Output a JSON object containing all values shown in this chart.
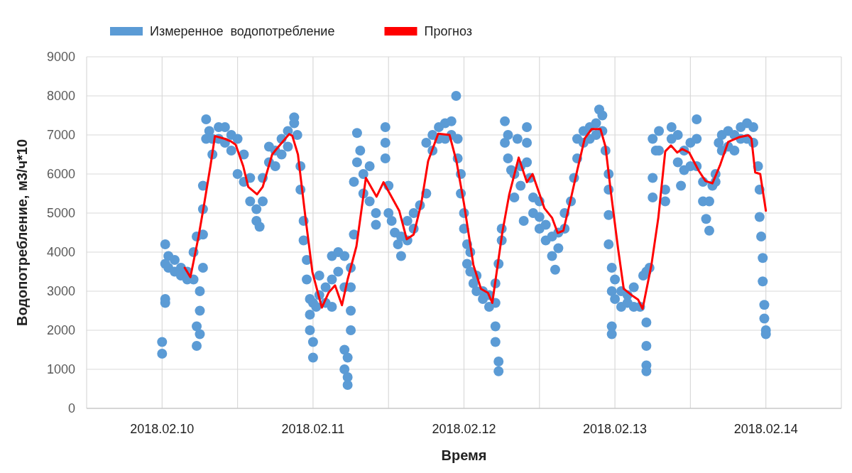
{
  "chart_data": {
    "type": "scatter",
    "xlabel": "Время",
    "ylabel": "Водопотребление, м3/ч*10",
    "xlim": [
      "2018-02-09T12:00",
      "2018-02-14T12:00"
    ],
    "xticks": [
      {
        "value": "2018-02-10T00:00",
        "label": "2018.02.10"
      },
      {
        "value": "2018-02-10T12:00",
        "label": null
      },
      {
        "value": "2018-02-11T00:00",
        "label": "2018.02.11"
      },
      {
        "value": "2018-02-11T12:00",
        "label": null
      },
      {
        "value": "2018-02-12T00:00",
        "label": "2018.02.12"
      },
      {
        "value": "2018-02-12T12:00",
        "label": null
      },
      {
        "value": "2018-02-13T00:00",
        "label": "2018.02.13"
      },
      {
        "value": "2018-02-13T12:00",
        "label": null
      },
      {
        "value": "2018-02-14T00:00",
        "label": "2018.02.14"
      }
    ],
    "ylim": [
      0,
      9000
    ],
    "yticks": [
      0,
      1000,
      2000,
      3000,
      4000,
      5000,
      6000,
      7000,
      8000,
      9000
    ],
    "grid": true,
    "legend": "top",
    "series": [
      {
        "name": "Измеренное  водопотребление",
        "marker": "circle",
        "color": "#5b9bd5",
        "x": [
          "2018-02-10T00:00",
          "2018-02-10T00:00",
          "2018-02-10T00:30",
          "2018-02-10T00:30",
          "2018-02-10T00:30",
          "2018-02-10T00:30",
          "2018-02-10T01:00",
          "2018-02-10T01:00",
          "2018-02-10T02:00",
          "2018-02-10T02:00",
          "2018-02-10T03:00",
          "2018-02-10T03:00",
          "2018-02-10T04:00",
          "2018-02-10T04:00",
          "2018-02-10T05:00",
          "2018-02-10T05:00",
          "2018-02-10T05:30",
          "2018-02-10T05:30",
          "2018-02-10T05:30",
          "2018-02-10T06:00",
          "2018-02-10T06:00",
          "2018-02-10T06:00",
          "2018-02-10T06:30",
          "2018-02-10T06:30",
          "2018-02-10T06:30",
          "2018-02-10T06:30",
          "2018-02-10T07:00",
          "2018-02-10T07:00",
          "2018-02-10T07:30",
          "2018-02-10T08:00",
          "2018-02-10T08:00",
          "2018-02-10T09:00",
          "2018-02-10T09:00",
          "2018-02-10T10:00",
          "2018-02-10T10:00",
          "2018-02-10T11:00",
          "2018-02-10T11:00",
          "2018-02-10T12:00",
          "2018-02-10T12:00",
          "2018-02-10T13:00",
          "2018-02-10T13:00",
          "2018-02-10T14:00",
          "2018-02-10T14:00",
          "2018-02-10T15:00",
          "2018-02-10T15:00",
          "2018-02-10T15:30",
          "2018-02-10T16:00",
          "2018-02-10T16:00",
          "2018-02-10T17:00",
          "2018-02-10T17:00",
          "2018-02-10T18:00",
          "2018-02-10T18:00",
          "2018-02-10T19:00",
          "2018-02-10T19:00",
          "2018-02-10T20:00",
          "2018-02-10T20:00",
          "2018-02-10T21:00",
          "2018-02-10T21:00",
          "2018-02-10T21:30",
          "2018-02-10T22:00",
          "2018-02-10T22:00",
          "2018-02-10T22:30",
          "2018-02-10T22:30",
          "2018-02-10T23:00",
          "2018-02-10T23:00",
          "2018-02-10T23:30",
          "2018-02-10T23:30",
          "2018-02-10T23:30",
          "2018-02-11T00:00",
          "2018-02-11T00:00",
          "2018-02-11T00:00",
          "2018-02-11T00:30",
          "2018-02-11T01:00",
          "2018-02-11T01:00",
          "2018-02-11T02:00",
          "2018-02-11T02:00",
          "2018-02-11T03:00",
          "2018-02-11T03:00",
          "2018-02-11T03:00",
          "2018-02-11T04:00",
          "2018-02-11T04:00",
          "2018-02-11T05:00",
          "2018-02-11T05:00",
          "2018-02-11T05:00",
          "2018-02-11T05:00",
          "2018-02-11T05:30",
          "2018-02-11T05:30",
          "2018-02-11T05:30",
          "2018-02-11T06:00",
          "2018-02-11T06:00",
          "2018-02-11T06:00",
          "2018-02-11T06:00",
          "2018-02-11T06:30",
          "2018-02-11T06:30",
          "2018-02-11T07:00",
          "2018-02-11T07:00",
          "2018-02-11T07:30",
          "2018-02-11T08:00",
          "2018-02-11T08:00",
          "2018-02-11T09:00",
          "2018-02-11T09:00",
          "2018-02-11T10:00",
          "2018-02-11T10:00",
          "2018-02-11T11:30",
          "2018-02-11T11:30",
          "2018-02-11T11:30",
          "2018-02-11T12:00",
          "2018-02-11T12:00",
          "2018-02-11T12:30",
          "2018-02-11T13:00",
          "2018-02-11T13:30",
          "2018-02-11T14:00",
          "2018-02-11T14:00",
          "2018-02-11T15:00",
          "2018-02-11T15:00",
          "2018-02-11T16:00",
          "2018-02-11T16:00",
          "2018-02-11T17:00",
          "2018-02-11T18:00",
          "2018-02-11T18:00",
          "2018-02-11T19:00",
          "2018-02-11T19:00",
          "2018-02-11T20:00",
          "2018-02-11T20:00",
          "2018-02-11T21:00",
          "2018-02-11T21:00",
          "2018-02-11T22:00",
          "2018-02-11T22:00",
          "2018-02-11T22:45",
          "2018-02-11T23:00",
          "2018-02-11T23:00",
          "2018-02-11T23:30",
          "2018-02-11T23:30",
          "2018-02-12T00:00",
          "2018-02-12T00:00",
          "2018-02-12T00:30",
          "2018-02-12T00:30",
          "2018-02-12T01:00",
          "2018-02-12T01:00",
          "2018-02-12T01:30",
          "2018-02-12T02:00",
          "2018-02-12T02:00",
          "2018-02-12T03:00",
          "2018-02-12T03:00",
          "2018-02-12T04:00",
          "2018-02-12T04:00",
          "2018-02-12T05:00",
          "2018-02-12T05:00",
          "2018-02-12T05:00",
          "2018-02-12T05:00",
          "2018-02-12T05:30",
          "2018-02-12T05:30",
          "2018-02-12T05:30",
          "2018-02-12T06:00",
          "2018-02-12T06:00",
          "2018-02-12T06:30",
          "2018-02-12T06:30",
          "2018-02-12T07:00",
          "2018-02-12T07:00",
          "2018-02-12T07:30",
          "2018-02-12T08:00",
          "2018-02-12T08:00",
          "2018-02-12T08:30",
          "2018-02-12T09:00",
          "2018-02-12T09:00",
          "2018-02-12T09:30",
          "2018-02-12T10:00",
          "2018-02-12T10:00",
          "2018-02-12T10:00",
          "2018-02-12T10:30",
          "2018-02-12T11:00",
          "2018-02-12T11:00",
          "2018-02-12T12:00",
          "2018-02-12T12:00",
          "2018-02-12T12:00",
          "2018-02-12T13:00",
          "2018-02-12T13:00",
          "2018-02-12T14:00",
          "2018-02-12T14:00",
          "2018-02-12T14:30",
          "2018-02-12T15:00",
          "2018-02-12T15:00",
          "2018-02-12T16:00",
          "2018-02-12T16:00",
          "2018-02-12T17:00",
          "2018-02-12T17:30",
          "2018-02-12T18:00",
          "2018-02-12T18:00",
          "2018-02-12T19:00",
          "2018-02-12T19:00",
          "2018-02-12T20:00",
          "2018-02-12T20:00",
          "2018-02-12T21:00",
          "2018-02-12T21:00",
          "2018-02-12T21:30",
          "2018-02-12T22:00",
          "2018-02-12T22:00",
          "2018-02-12T22:30",
          "2018-02-12T23:00",
          "2018-02-12T23:00",
          "2018-02-12T23:00",
          "2018-02-12T23:00",
          "2018-02-12T23:30",
          "2018-02-12T23:30",
          "2018-02-12T23:30",
          "2018-02-12T23:30",
          "2018-02-13T00:00",
          "2018-02-13T00:00",
          "2018-02-13T01:00",
          "2018-02-13T01:00",
          "2018-02-13T02:00",
          "2018-02-13T02:00",
          "2018-02-13T03:00",
          "2018-02-13T03:00",
          "2018-02-13T04:00",
          "2018-02-13T04:30",
          "2018-02-13T05:00",
          "2018-02-13T05:00",
          "2018-02-13T05:00",
          "2018-02-13T05:00",
          "2018-02-13T05:00",
          "2018-02-13T05:30",
          "2018-02-13T06:00",
          "2018-02-13T06:00",
          "2018-02-13T06:00",
          "2018-02-13T06:30",
          "2018-02-13T07:00",
          "2018-02-13T07:00",
          "2018-02-13T08:00",
          "2018-02-13T08:00",
          "2018-02-13T09:00",
          "2018-02-13T09:00",
          "2018-02-13T10:00",
          "2018-02-13T10:00",
          "2018-02-13T10:30",
          "2018-02-13T11:00",
          "2018-02-13T11:00",
          "2018-02-13T12:00",
          "2018-02-13T12:00",
          "2018-02-13T13:00",
          "2018-02-13T13:00",
          "2018-02-13T13:00",
          "2018-02-13T14:00",
          "2018-02-13T14:00",
          "2018-02-13T14:30",
          "2018-02-13T15:00",
          "2018-02-13T15:00",
          "2018-02-13T15:30",
          "2018-02-13T16:00",
          "2018-02-13T16:00",
          "2018-02-13T16:30",
          "2018-02-13T17:00",
          "2018-02-13T17:00",
          "2018-02-13T18:00",
          "2018-02-13T18:00",
          "2018-02-13T19:00",
          "2018-02-13T19:00",
          "2018-02-13T20:00",
          "2018-02-13T20:00",
          "2018-02-13T21:00",
          "2018-02-13T21:00",
          "2018-02-13T22:00",
          "2018-02-13T22:00",
          "2018-02-13T22:45",
          "2018-02-13T23:00",
          "2018-02-13T23:00",
          "2018-02-13T23:15",
          "2018-02-13T23:30",
          "2018-02-13T23:30",
          "2018-02-13T23:45",
          "2018-02-13T23:45",
          "2018-02-14T00:00",
          "2018-02-14T00:00"
        ],
        "values": [
          1700,
          1400,
          2800,
          2700,
          3700,
          4200,
          3900,
          3600,
          3800,
          3500,
          3600,
          3400,
          3500,
          3300,
          3300,
          4000,
          4400,
          2100,
          1600,
          2500,
          1900,
          3000,
          3600,
          4450,
          5100,
          5700,
          7400,
          6900,
          7100,
          6900,
          6500,
          7200,
          6900,
          7200,
          6800,
          7000,
          6600,
          6900,
          6000,
          6500,
          5800,
          5900,
          5300,
          5100,
          4800,
          4650,
          5300,
          5900,
          6300,
          6700,
          6600,
          6200,
          6900,
          6500,
          7100,
          6700,
          7300,
          7450,
          7000,
          6200,
          5600,
          4800,
          4300,
          3800,
          3300,
          2800,
          2400,
          2000,
          1700,
          1300,
          2700,
          2600,
          3400,
          2900,
          3100,
          2700,
          3300,
          2600,
          3900,
          4000,
          3500,
          3900,
          3100,
          1500,
          1000,
          800,
          600,
          1300,
          2000,
          2500,
          3100,
          3600,
          4450,
          5800,
          6300,
          7050,
          6600,
          6000,
          5500,
          6200,
          5300,
          5000,
          4700,
          7200,
          6800,
          6400,
          5700,
          5000,
          4800,
          4500,
          4200,
          3900,
          4400,
          4300,
          4800,
          4600,
          5000,
          5200,
          5500,
          6800,
          7000,
          6600,
          7200,
          6900,
          7300,
          6900,
          7350,
          7000,
          8000,
          6900,
          6400,
          6000,
          5500,
          5000,
          4600,
          4200,
          3700,
          3500,
          4000,
          3200,
          3000,
          3400,
          3000,
          2800,
          2900,
          2600,
          2700,
          3200,
          2100,
          1700,
          1200,
          950,
          3700,
          4300,
          4600,
          7350,
          6800,
          6400,
          7000,
          6100,
          6000,
          5400,
          6900,
          6200,
          5700,
          4800,
          7200,
          6800,
          6300,
          5900,
          5400,
          5000,
          5300,
          4900,
          4600,
          4700,
          4300,
          4400,
          3900,
          3550,
          4100,
          4500,
          4600,
          5000,
          5300,
          5900,
          6400,
          6900,
          7100,
          6800,
          7200,
          6900,
          7300,
          7000,
          7650,
          7500,
          7100,
          6600,
          6000,
          5600,
          4950,
          4200,
          3600,
          3000,
          2100,
          1900,
          3300,
          2800,
          3000,
          2600,
          2900,
          2700,
          2600,
          3100,
          2600,
          3400,
          3500,
          2200,
          1600,
          1100,
          950,
          3600,
          6900,
          5900,
          5400,
          6600,
          7100,
          6600,
          5600,
          5300,
          7200,
          6900,
          7000,
          6300,
          5700,
          6100,
          6600,
          6800,
          6200,
          7400,
          6900,
          6200,
          5800,
          5300,
          4850,
          4550,
          5300,
          5700,
          6000,
          5800,
          6800,
          7000,
          6600,
          7100,
          6700,
          7000,
          6600,
          7200,
          6900,
          7300,
          6900,
          7200,
          6800,
          6200,
          5600,
          4900,
          4400,
          3850,
          3250,
          2650,
          2300,
          2000,
          1900
        ]
      },
      {
        "name": "Прогноз",
        "type": "line",
        "color": "#ff0000",
        "x": [
          "2018-02-10T03:36",
          "2018-02-10T04:30",
          "2018-02-10T05:48",
          "2018-02-10T06:42",
          "2018-02-10T07:42",
          "2018-02-10T08:24",
          "2018-02-10T10:00",
          "2018-02-10T10:54",
          "2018-02-10T11:42",
          "2018-02-10T12:54",
          "2018-02-10T13:42",
          "2018-02-10T15:06",
          "2018-02-10T16:00",
          "2018-02-10T17:30",
          "2018-02-10T18:12",
          "2018-02-10T20:12",
          "2018-02-10T20:42",
          "2018-02-10T21:36",
          "2018-02-10T22:48",
          "2018-02-10T23:54",
          "2018-02-11T01:24",
          "2018-02-11T02:30",
          "2018-02-11T03:30",
          "2018-02-11T04:36",
          "2018-02-11T05:30",
          "2018-02-11T06:54",
          "2018-02-11T08:24",
          "2018-02-11T10:06",
          "2018-02-11T11:12",
          "2018-02-11T13:42",
          "2018-02-11T14:54",
          "2018-02-11T16:00",
          "2018-02-11T17:12",
          "2018-02-11T18:18",
          "2018-02-11T19:54",
          "2018-02-11T21:42",
          "2018-02-11T22:48",
          "2018-02-12T00:00",
          "2018-02-12T01:30",
          "2018-02-12T02:42",
          "2018-02-12T03:48",
          "2018-02-12T04:30",
          "2018-02-12T06:06",
          "2018-02-12T07:12",
          "2018-02-12T08:42",
          "2018-02-12T10:00",
          "2018-02-12T10:54",
          "2018-02-12T12:48",
          "2018-02-12T14:00",
          "2018-02-12T14:54",
          "2018-02-12T15:48",
          "2018-02-12T16:54",
          "2018-02-12T18:00",
          "2018-02-12T19:12",
          "2018-02-12T20:18",
          "2018-02-12T21:42",
          "2018-02-12T22:30",
          "2018-02-12T23:24",
          "2018-02-13T00:30",
          "2018-02-13T01:24",
          "2018-02-13T02:48",
          "2018-02-13T03:42",
          "2018-02-13T04:24",
          "2018-02-13T05:48",
          "2018-02-13T06:54",
          "2018-02-13T08:00",
          "2018-02-13T08:54",
          "2018-02-13T09:54",
          "2018-02-13T10:42",
          "2018-02-13T11:48",
          "2018-02-13T13:18",
          "2018-02-13T14:24",
          "2018-02-13T15:30",
          "2018-02-13T16:42",
          "2018-02-13T18:00",
          "2018-02-13T19:42",
          "2018-02-13T21:12",
          "2018-02-13T21:42",
          "2018-02-13T22:18",
          "2018-02-13T23:06",
          "2018-02-14T00:00"
        ],
        "values": [
          3600,
          3360,
          4400,
          5240,
          6220,
          6970,
          6900,
          6840,
          6750,
          6200,
          5670,
          5480,
          5670,
          6500,
          6640,
          7020,
          6980,
          6500,
          4880,
          3490,
          2580,
          2970,
          3150,
          2640,
          3300,
          4150,
          5900,
          5420,
          5790,
          5060,
          4330,
          4450,
          5240,
          6330,
          7030,
          7000,
          6330,
          5240,
          3670,
          3060,
          2960,
          2700,
          4510,
          5480,
          6420,
          5790,
          6000,
          5120,
          4880,
          4490,
          4550,
          5300,
          6090,
          6910,
          7150,
          7150,
          6700,
          5480,
          4090,
          3060,
          2880,
          2780,
          2550,
          3670,
          4880,
          6580,
          6730,
          6550,
          6640,
          6550,
          6090,
          5820,
          5760,
          6220,
          6820,
          6940,
          6990,
          6910,
          6040,
          6000,
          5060
        ]
      }
    ]
  }
}
